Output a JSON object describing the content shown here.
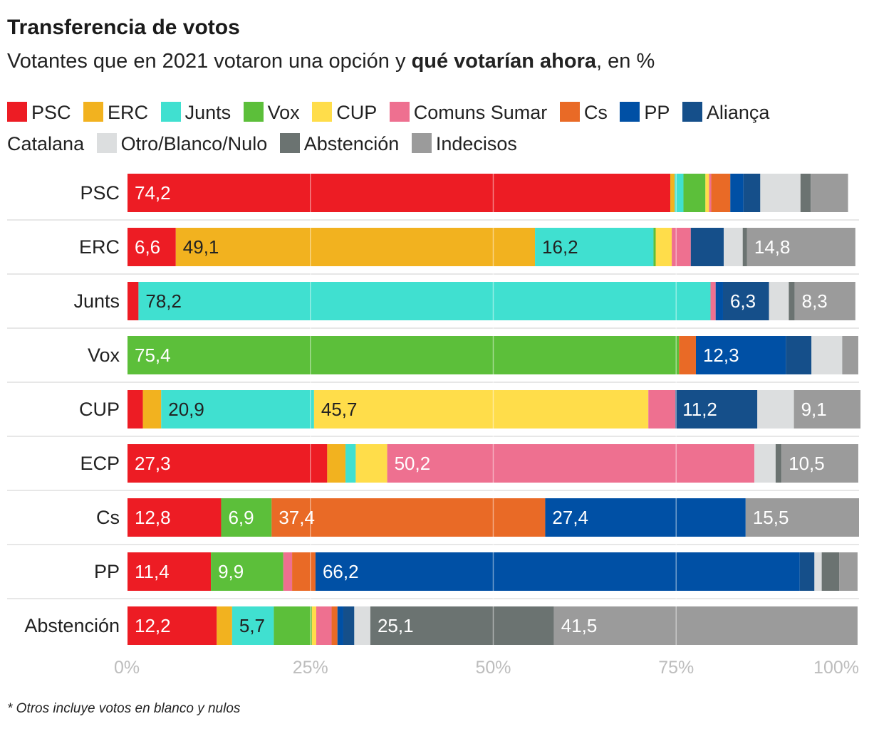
{
  "header": {
    "title": "Transferencia de votos",
    "subtitle_pre": "Votantes que en 2021 votaron una opción y ",
    "subtitle_bold": "qué votarían ahora",
    "subtitle_post": ", en %"
  },
  "footnote": "* Otros incluye votos en blanco y nulos",
  "chart_data": {
    "type": "bar",
    "orientation": "horizontal",
    "stacked": true,
    "xlim": [
      0,
      100
    ],
    "x_ticks": [
      0,
      25,
      50,
      75,
      100
    ],
    "x_tick_labels": [
      "0%",
      "25%",
      "50%",
      "75%",
      "100%"
    ],
    "grid": true,
    "legend_position": "top",
    "categories": [
      "PSC",
      "ERC",
      "Junts",
      "Vox",
      "CUP",
      "ECP",
      "Cs",
      "PP",
      "Abstención"
    ],
    "series": [
      {
        "name": "PSC",
        "color": "#ed1c24",
        "values": [
          74.2,
          6.6,
          1.5,
          0.0,
          2.1,
          27.3,
          12.8,
          11.4,
          12.2
        ]
      },
      {
        "name": "ERC",
        "color": "#f2b21f",
        "values": [
          0.6,
          49.1,
          0.0,
          0.0,
          2.5,
          2.5,
          0.0,
          0.0,
          2.1
        ]
      },
      {
        "name": "Junts",
        "color": "#40e0d0",
        "values": [
          1.2,
          16.2,
          78.2,
          0.0,
          20.9,
          1.4,
          0.0,
          0.0,
          5.7
        ]
      },
      {
        "name": "Vox",
        "color": "#5cbf3a",
        "values": [
          3.0,
          0.3,
          0.0,
          75.4,
          0.0,
          0.0,
          6.9,
          9.9,
          5.2
        ]
      },
      {
        "name": "CUP",
        "color": "#ffdd4a",
        "values": [
          0.5,
          2.2,
          0.0,
          0.0,
          45.7,
          4.3,
          0.0,
          0.0,
          0.6
        ]
      },
      {
        "name": "Comuns Sumar",
        "color": "#ee7090",
        "values": [
          0.3,
          2.6,
          0.7,
          0.0,
          3.7,
          50.2,
          0.0,
          1.2,
          2.1
        ]
      },
      {
        "name": "Cs",
        "color": "#e96a26",
        "values": [
          2.6,
          0.0,
          0.0,
          2.3,
          0.0,
          0.0,
          37.4,
          3.2,
          0.8
        ]
      },
      {
        "name": "PP",
        "color": "#0050a5",
        "values": [
          1.8,
          0.0,
          1.0,
          12.3,
          0.0,
          0.0,
          27.4,
          66.2,
          0.8
        ]
      },
      {
        "name": "Aliança Catalana",
        "color": "#154f8a",
        "values": [
          2.3,
          4.5,
          6.3,
          3.5,
          11.2,
          0.0,
          0.0,
          2.0,
          1.5
        ]
      },
      {
        "name": "Otro/Blanco/Nulo",
        "color": "#dcdedf",
        "values": [
          5.5,
          2.6,
          2.7,
          4.2,
          5.0,
          2.9,
          0.0,
          1.0,
          2.2
        ]
      },
      {
        "name": "Abstención",
        "color": "#6b7371",
        "values": [
          1.4,
          0.6,
          0.8,
          0.0,
          0.0,
          0.8,
          0.0,
          2.4,
          25.1
        ]
      },
      {
        "name": "Indecisos",
        "color": "#9b9b9b",
        "values": [
          5.1,
          14.8,
          8.3,
          2.2,
          9.1,
          10.5,
          15.5,
          2.5,
          41.5
        ]
      }
    ],
    "printed_labels": [
      {
        "row": "PSC",
        "series": "PSC",
        "text": "74,2"
      },
      {
        "row": "ERC",
        "series": "PSC",
        "text": "6,6"
      },
      {
        "row": "ERC",
        "series": "ERC",
        "text": "49,1"
      },
      {
        "row": "ERC",
        "series": "Junts",
        "text": "16,2"
      },
      {
        "row": "ERC",
        "series": "Indecisos",
        "text": "14,8"
      },
      {
        "row": "Junts",
        "series": "Junts",
        "text": "78,2"
      },
      {
        "row": "Junts",
        "series": "Aliança Catalana",
        "text": "6,3"
      },
      {
        "row": "Junts",
        "series": "Indecisos",
        "text": "8,3"
      },
      {
        "row": "Vox",
        "series": "Vox",
        "text": "75,4"
      },
      {
        "row": "Vox",
        "series": "PP",
        "text": "12,3"
      },
      {
        "row": "CUP",
        "series": "Junts",
        "text": "20,9"
      },
      {
        "row": "CUP",
        "series": "CUP",
        "text": "45,7"
      },
      {
        "row": "CUP",
        "series": "Aliança Catalana",
        "text": "11,2"
      },
      {
        "row": "CUP",
        "series": "Indecisos",
        "text": "9,1"
      },
      {
        "row": "ECP",
        "series": "PSC",
        "text": "27,3"
      },
      {
        "row": "ECP",
        "series": "Comuns Sumar",
        "text": "50,2"
      },
      {
        "row": "ECP",
        "series": "Indecisos",
        "text": "10,5"
      },
      {
        "row": "Cs",
        "series": "PSC",
        "text": "12,8"
      },
      {
        "row": "Cs",
        "series": "Vox",
        "text": "6,9"
      },
      {
        "row": "Cs",
        "series": "Cs",
        "text": "37,4"
      },
      {
        "row": "Cs",
        "series": "PP",
        "text": "27,4"
      },
      {
        "row": "Cs",
        "series": "Indecisos",
        "text": "15,5"
      },
      {
        "row": "PP",
        "series": "PSC",
        "text": "11,4"
      },
      {
        "row": "PP",
        "series": "Vox",
        "text": "9,9"
      },
      {
        "row": "PP",
        "series": "PP",
        "text": "66,2"
      },
      {
        "row": "Abstención",
        "series": "PSC",
        "text": "12,2"
      },
      {
        "row": "Abstención",
        "series": "Junts",
        "text": "5,7"
      },
      {
        "row": "Abstención",
        "series": "Abstención",
        "text": "25,1"
      },
      {
        "row": "Abstención",
        "series": "Indecisos",
        "text": "41,5"
      }
    ],
    "dark_label_series": [
      "ERC",
      "Junts",
      "CUP"
    ]
  }
}
